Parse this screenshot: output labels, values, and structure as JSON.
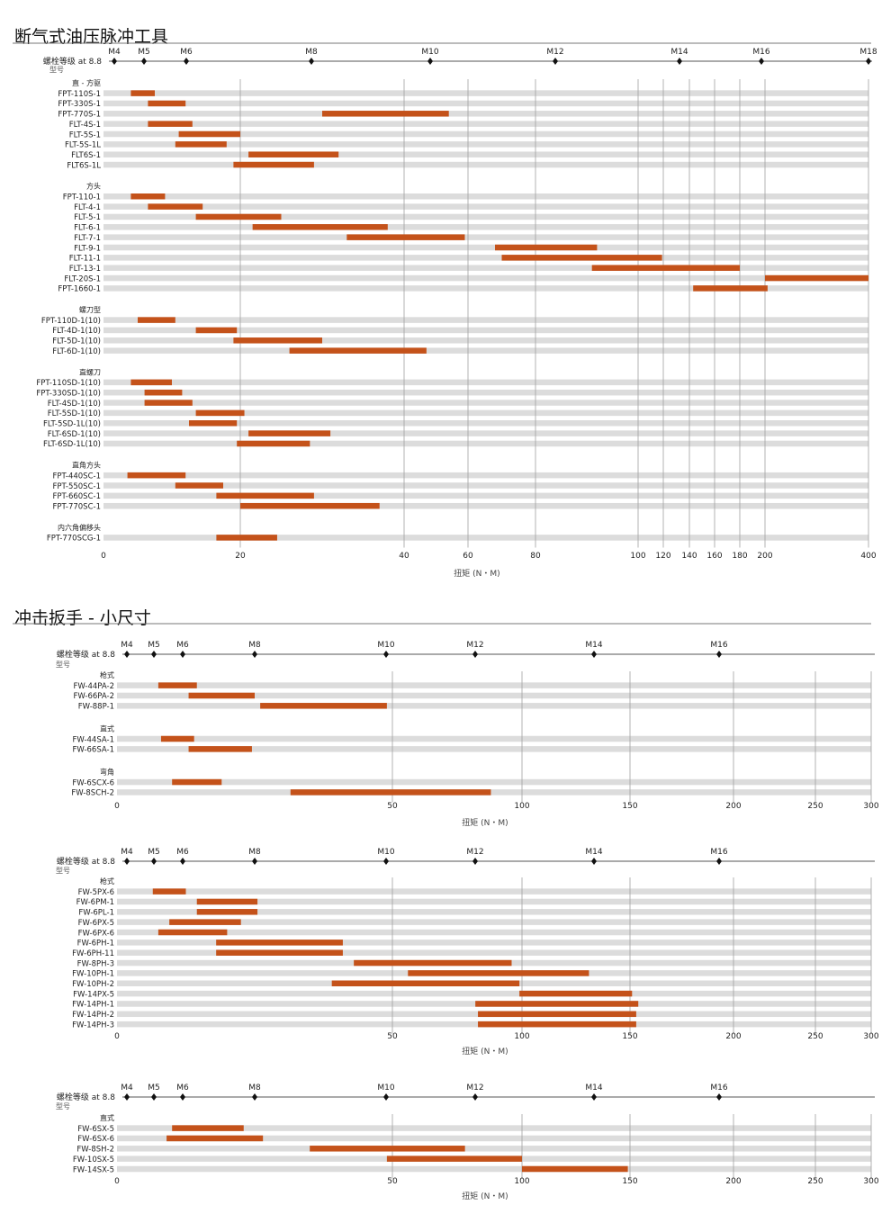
{
  "sections": [
    {
      "title": "断气式油压脉冲工具"
    },
    {
      "title": "冲击扳手 - 小尺寸"
    }
  ],
  "colors": {
    "bar": "#c4521a",
    "track": "#dcdcdc",
    "grid": "#a0a0a0",
    "axis": "#555555"
  },
  "common": {
    "bolt_label": "螺栓等级 at 8.8",
    "model_label": "型号",
    "x_axis_label": "扭矩 (N・M)"
  },
  "chart_data": [
    {
      "type": "bar",
      "chart": "pulse-tools",
      "xlabel": "扭矩 (N・M)",
      "xlim": [
        0,
        400
      ],
      "x_scale": "piecewise",
      "x_ticks": [
        0,
        20,
        40,
        60,
        80,
        100,
        120,
        140,
        160,
        180,
        200,
        400
      ],
      "bolt_grades": [
        "M4",
        "M5",
        "M6",
        "M8",
        "M10",
        "M12",
        "M14",
        "M16",
        "M18"
      ],
      "groups": [
        {
          "label": "直 - 方驱",
          "items": [
            {
              "model": "FPT-110S-1",
              "min": 4,
              "max": 7.5
            },
            {
              "model": "FPT-330S-1",
              "min": 6.5,
              "max": 12
            },
            {
              "model": "FPT-770S-1",
              "min": 30,
              "max": 54
            },
            {
              "model": "FLT-4S-1",
              "min": 6.5,
              "max": 13
            },
            {
              "model": "FLT-5S-1",
              "min": 11,
              "max": 20
            },
            {
              "model": "FLT-5S-1L",
              "min": 10.5,
              "max": 18
            },
            {
              "model": "FLT6S-1",
              "min": 21,
              "max": 32
            },
            {
              "model": "FLT6S-1L",
              "min": 19,
              "max": 29
            }
          ]
        },
        {
          "label": "方头",
          "items": [
            {
              "model": "FPT-110-1",
              "min": 4,
              "max": 9
            },
            {
              "model": "FLT-4-1",
              "min": 6.5,
              "max": 14.5
            },
            {
              "model": "FLT-5-1",
              "min": 13.5,
              "max": 25
            },
            {
              "model": "FLT-6-1",
              "min": 21.5,
              "max": 38
            },
            {
              "model": "FLT-7-1",
              "min": 33,
              "max": 59
            },
            {
              "model": "FLT-9-1",
              "min": 68,
              "max": 92
            },
            {
              "model": "FLT-11-1",
              "min": 70,
              "max": 119
            },
            {
              "model": "FLT-13-1",
              "min": 91,
              "max": 180
            },
            {
              "model": "FLT-20S-1",
              "min": 200,
              "max": 400
            },
            {
              "model": "FPT-1660-1",
              "min": 143,
              "max": 205
            }
          ]
        },
        {
          "label": "螺刀型",
          "items": [
            {
              "model": "FPT-110D-1(10)",
              "min": 5,
              "max": 10.5
            },
            {
              "model": "FLT-4D-1(10)",
              "min": 13.5,
              "max": 19.5
            },
            {
              "model": "FLT-5D-1(10)",
              "min": 19,
              "max": 30
            },
            {
              "model": "FLT-6D-1(10)",
              "min": 26,
              "max": 47
            }
          ]
        },
        {
          "label": "直螺刀",
          "items": [
            {
              "model": "FPT-110SD-1(10)",
              "min": 4,
              "max": 10
            },
            {
              "model": "FPT-330SD-1(10)",
              "min": 6,
              "max": 11.5
            },
            {
              "model": "FLT-4SD-1(10)",
              "min": 6,
              "max": 13
            },
            {
              "model": "FLT-5SD-1(10)",
              "min": 13.5,
              "max": 20.5
            },
            {
              "model": "FLT-5SD-1L(10)",
              "min": 12.5,
              "max": 19.5
            },
            {
              "model": "FLT-6SD-1(10)",
              "min": 21,
              "max": 31
            },
            {
              "model": "FLT-6SD-1L(10)",
              "min": 19.5,
              "max": 28.5
            }
          ]
        },
        {
          "label": "直角方头",
          "items": [
            {
              "model": "FPT-440SC-1",
              "min": 3.5,
              "max": 12
            },
            {
              "model": "FPT-550SC-1",
              "min": 10.5,
              "max": 17.5
            },
            {
              "model": "FPT-660SC-1",
              "min": 16.5,
              "max": 29
            },
            {
              "model": "FPT-770SC-1",
              "min": 20,
              "max": 37
            }
          ]
        },
        {
          "label": "内六角偏移头",
          "items": [
            {
              "model": "FPT-770SCG-1",
              "min": 16.5,
              "max": 24.5
            }
          ]
        }
      ]
    },
    {
      "type": "bar",
      "chart": "impact-wrench-1",
      "xlabel": "扭矩 (N・M)",
      "xlim": [
        0,
        300
      ],
      "x_scale": "piecewise",
      "x_ticks": [
        0,
        50,
        100,
        150,
        200,
        250,
        300
      ],
      "bolt_grades": [
        "M4",
        "M5",
        "M6",
        "M8",
        "M10",
        "M12",
        "M14",
        "M16"
      ],
      "groups": [
        {
          "label": "枪式",
          "items": [
            {
              "model": "FW-44PA-2",
              "min": 7.5,
              "max": 14.5
            },
            {
              "model": "FW-66PA-2",
              "min": 13,
              "max": 25
            },
            {
              "model": "FW-88P-1",
              "min": 26,
              "max": 49
            }
          ]
        },
        {
          "label": "直式",
          "items": [
            {
              "model": "FW-44SA-1",
              "min": 8,
              "max": 14
            },
            {
              "model": "FW-66SA-1",
              "min": 13,
              "max": 24.5
            }
          ]
        },
        {
          "label": "弯角",
          "items": [
            {
              "model": "FW-6SCX-6",
              "min": 10,
              "max": 19
            },
            {
              "model": "FW-8SCH-2",
              "min": 31.5,
              "max": 88
            }
          ]
        }
      ]
    },
    {
      "type": "bar",
      "chart": "impact-wrench-2",
      "xlabel": "扭矩 (N・M)",
      "xlim": [
        0,
        300
      ],
      "x_scale": "piecewise",
      "x_ticks": [
        0,
        50,
        100,
        150,
        200,
        250,
        300
      ],
      "bolt_grades": [
        "M4",
        "M5",
        "M6",
        "M8",
        "M10",
        "M12",
        "M14",
        "M16"
      ],
      "groups": [
        {
          "label": "枪式",
          "items": [
            {
              "model": "FW-5PX-6",
              "min": 6.5,
              "max": 12.5
            },
            {
              "model": "FW-6PM-1",
              "min": 14.5,
              "max": 25.5
            },
            {
              "model": "FW-6PL-1",
              "min": 14.5,
              "max": 25.5
            },
            {
              "model": "FW-6PX-5",
              "min": 9.5,
              "max": 22.5
            },
            {
              "model": "FW-6PX-6",
              "min": 7.5,
              "max": 20
            },
            {
              "model": "FW-6PH-1",
              "min": 18,
              "max": 41
            },
            {
              "model": "FW-6PH-11",
              "min": 18,
              "max": 41
            },
            {
              "model": "FW-8PH-3",
              "min": 43,
              "max": 96
            },
            {
              "model": "FW-10PH-1",
              "min": 56,
              "max": 131
            },
            {
              "model": "FW-10PH-2",
              "min": 39,
              "max": 99
            },
            {
              "model": "FW-14PX-5",
              "min": 99,
              "max": 151
            },
            {
              "model": "FW-14PH-1",
              "min": 82,
              "max": 154
            },
            {
              "model": "FW-14PH-2",
              "min": 83,
              "max": 153
            },
            {
              "model": "FW-14PH-3",
              "min": 83,
              "max": 153
            }
          ]
        }
      ]
    },
    {
      "type": "bar",
      "chart": "impact-wrench-3",
      "xlabel": "扭矩 (N・M)",
      "xlim": [
        0,
        300
      ],
      "x_scale": "piecewise",
      "x_ticks": [
        0,
        50,
        100,
        150,
        200,
        250,
        300
      ],
      "bolt_grades": [
        "M4",
        "M5",
        "M6",
        "M8",
        "M10",
        "M12",
        "M14",
        "M16"
      ],
      "groups": [
        {
          "label": "直式",
          "items": [
            {
              "model": "FW-6SX-5",
              "min": 10,
              "max": 23
            },
            {
              "model": "FW-6SX-6",
              "min": 9,
              "max": 26.5
            },
            {
              "model": "FW-8SH-2",
              "min": 35,
              "max": 78
            },
            {
              "model": "FW-10SX-5",
              "min": 49,
              "max": 100
            },
            {
              "model": "FW-14SX-5",
              "min": 100,
              "max": 149
            }
          ]
        }
      ]
    }
  ]
}
